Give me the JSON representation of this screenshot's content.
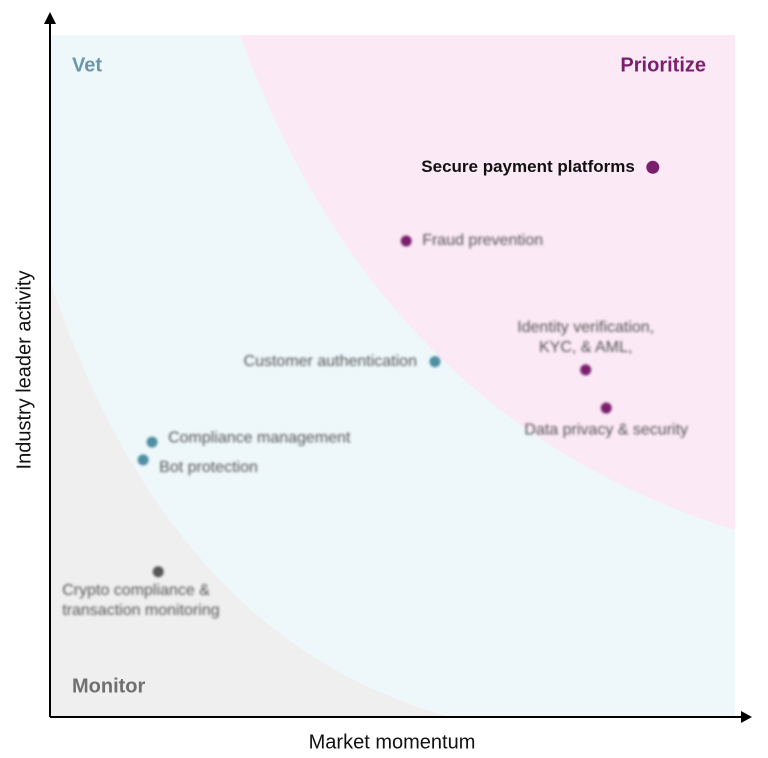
{
  "chart_data": {
    "type": "scatter",
    "x_label": "Market momentum",
    "y_label": "Industry leader activity",
    "xlim": [
      0,
      100
    ],
    "ylim": [
      0,
      100
    ],
    "zones": [
      {
        "name": "Vet",
        "color": "#6b96ac"
      },
      {
        "name": "Prioritize",
        "color": "#7a1f6e"
      },
      {
        "name": "Monitor",
        "color": "#707070"
      }
    ],
    "points": [
      {
        "label": [
          "Secure payment platforms"
        ],
        "x": 88.0,
        "y": 80.6,
        "color": "#7a1f6e"
      },
      {
        "label": [
          "Fraud prevention"
        ],
        "x": 52.0,
        "y": 69.8,
        "color": "#7a1f6e"
      },
      {
        "label": [
          "Identity verification,",
          "KYC, & AML,"
        ],
        "x": 78.2,
        "y": 50.9,
        "color": "#7a1f6e"
      },
      {
        "label": [
          "Data privacy & security"
        ],
        "x": 81.2,
        "y": 45.3,
        "color": "#7a1f6e"
      },
      {
        "label": [
          "Customer authentication"
        ],
        "x": 56.2,
        "y": 52.1,
        "color": "#4f8ea3"
      },
      {
        "label": [
          "Compliance management"
        ],
        "x": 14.9,
        "y": 40.3,
        "color": "#4f8ea3"
      },
      {
        "label": [
          "Bot protection"
        ],
        "x": 13.6,
        "y": 37.7,
        "color": "#4f8ea3"
      },
      {
        "label": [
          "Crypto compliance &",
          "transaction monitoring"
        ],
        "x": 15.8,
        "y": 21.3,
        "color": "#555555"
      }
    ]
  }
}
